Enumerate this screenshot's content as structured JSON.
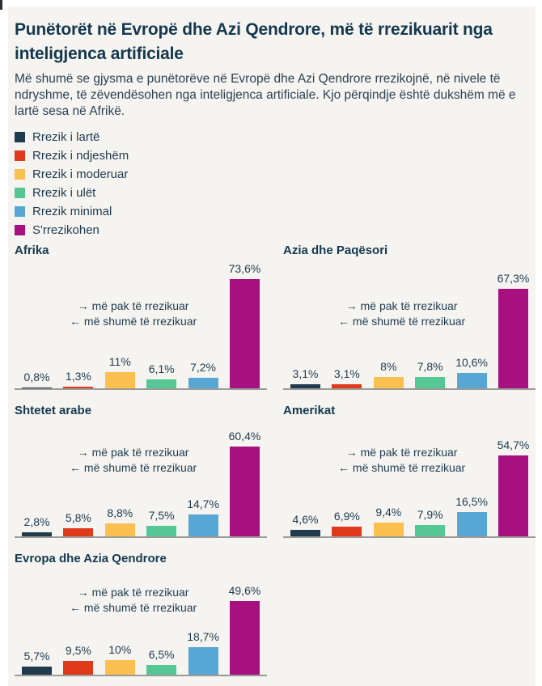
{
  "page": {
    "title": "Punëtorët në Evropë dhe Azi Qendrore, më të rrezikuarit nga inteligjenca artificiale",
    "subtitle": "Më shumë se gjysma e punëtorëve në Evropë dhe Azi Qendrore rrezikojnë, në nivele të ndryshme, të zëvendësohen nga inteligjenca artificiale. Kjo përqindje është dukshëm më e lartë sesa në Afrikë."
  },
  "colors": {
    "background": "#f5f4f1",
    "title": "#14384e",
    "text": "#2e4150",
    "axis": "#9c9b97"
  },
  "legend": [
    {
      "label": "Rrezik i lartë",
      "color": "#203b4d"
    },
    {
      "label": "Rrezik i ndjeshëm",
      "color": "#e03a1c"
    },
    {
      "label": "Rrezik i moderuar",
      "color": "#fbc04f"
    },
    {
      "label": "Rrezik i ulët",
      "color": "#55c795"
    },
    {
      "label": "Rrezik minimal",
      "color": "#57a6d3"
    },
    {
      "label": "S'rrezikohen",
      "color": "#a6107f"
    }
  ],
  "annotation": {
    "less": "→ më pak të rrezikuar",
    "more": "← më shumë të rrezikuar"
  },
  "chart_data": [
    {
      "type": "bar",
      "title": "Afrika",
      "categories": [
        "Rrezik i lartë",
        "Rrezik i ndjeshëm",
        "Rrezik i moderuar",
        "Rrezik i ulët",
        "Rrezik minimal",
        "S'rrezikohen"
      ],
      "values": [
        0.8,
        1.3,
        11,
        6.1,
        7.2,
        73.6
      ],
      "labels": [
        "0,8%",
        "1,3%",
        "11%",
        "6,1%",
        "7,2%",
        "73,6%"
      ],
      "ylim": [
        0,
        80
      ],
      "grid": false,
      "value_labels": "above-bars"
    },
    {
      "type": "bar",
      "title": "Azia dhe Paqësori",
      "categories": [
        "Rrezik i lartë",
        "Rrezik i ndjeshëm",
        "Rrezik i moderuar",
        "Rrezik i ulët",
        "Rrezik minimal",
        "S'rrezikohen"
      ],
      "values": [
        3.1,
        3.1,
        8,
        7.8,
        10.6,
        67.3
      ],
      "labels": [
        "3,1%",
        "3,1%",
        "8%",
        "7,8%",
        "10,6%",
        "67,3%"
      ],
      "ylim": [
        0,
        80
      ],
      "grid": false,
      "value_labels": "above-bars"
    },
    {
      "type": "bar",
      "title": "Shtetet arabe",
      "categories": [
        "Rrezik i lartë",
        "Rrezik i ndjeshëm",
        "Rrezik i moderuar",
        "Rrezik i ulët",
        "Rrezik minimal",
        "S'rrezikohen"
      ],
      "values": [
        2.8,
        5.8,
        8.8,
        7.5,
        14.7,
        60.4
      ],
      "labels": [
        "2,8%",
        "5,8%",
        "8,8%",
        "7,5%",
        "14,7%",
        "60,4%"
      ],
      "ylim": [
        0,
        80
      ],
      "grid": false,
      "value_labels": "above-bars"
    },
    {
      "type": "bar",
      "title": "Amerikat",
      "categories": [
        "Rrezik i lartë",
        "Rrezik i ndjeshëm",
        "Rrezik i moderuar",
        "Rrezik i ulët",
        "Rrezik minimal",
        "S'rrezikohen"
      ],
      "values": [
        4.6,
        6.9,
        9.4,
        7.9,
        16.5,
        54.7
      ],
      "labels": [
        "4,6%",
        "6,9%",
        "9,4%",
        "7,9%",
        "16,5%",
        "54,7%"
      ],
      "ylim": [
        0,
        80
      ],
      "grid": false,
      "value_labels": "above-bars"
    },
    {
      "type": "bar",
      "title": "Evropa dhe Azia Qendrore",
      "categories": [
        "Rrezik i lartë",
        "Rrezik i ndjeshëm",
        "Rrezik i moderuar",
        "Rrezik i ulët",
        "Rrezik minimal",
        "S'rrezikohen"
      ],
      "values": [
        5.7,
        9.5,
        10,
        6.5,
        18.7,
        49.6
      ],
      "labels": [
        "5,7%",
        "9,5%",
        "10%",
        "6,5%",
        "18,7%",
        "49,6%"
      ],
      "ylim": [
        0,
        80
      ],
      "grid": false,
      "value_labels": "above-bars"
    }
  ]
}
